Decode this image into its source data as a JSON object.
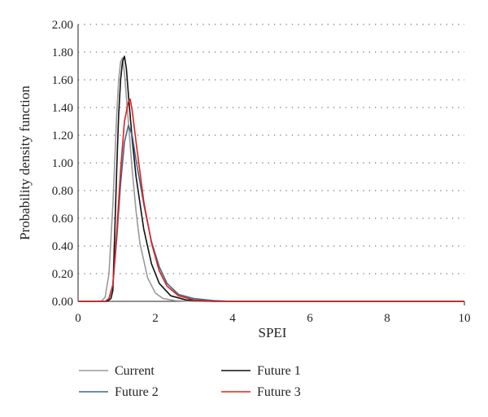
{
  "chart_data": {
    "type": "line",
    "xlabel": "SPEI",
    "ylabel": "Probability density function",
    "xlim": [
      0,
      10
    ],
    "ylim": [
      0,
      2
    ],
    "x_ticks": [
      "0",
      "2",
      "4",
      "6",
      "8",
      "10"
    ],
    "y_ticks": [
      "0.00",
      "0.20",
      "0.40",
      "0.60",
      "0.80",
      "1.00",
      "1.20",
      "1.40",
      "1.60",
      "1.80",
      "2.00"
    ],
    "grid": "horizontal dotted",
    "legend_position": "bottom",
    "series": [
      {
        "name": "Current",
        "color": "#9a9a9a",
        "points": [
          [
            0,
            0
          ],
          [
            0.6,
            0
          ],
          [
            0.7,
            0.03
          ],
          [
            0.8,
            0.2
          ],
          [
            0.9,
            0.7
          ],
          [
            1.0,
            1.35
          ],
          [
            1.05,
            1.6
          ],
          [
            1.1,
            1.73
          ],
          [
            1.15,
            1.76
          ],
          [
            1.2,
            1.65
          ],
          [
            1.3,
            1.3
          ],
          [
            1.4,
            0.95
          ],
          [
            1.5,
            0.65
          ],
          [
            1.6,
            0.42
          ],
          [
            1.8,
            0.17
          ],
          [
            2.0,
            0.06
          ],
          [
            2.2,
            0.02
          ],
          [
            2.5,
            0.005
          ],
          [
            3,
            0
          ],
          [
            10,
            0
          ]
        ]
      },
      {
        "name": "Future 1",
        "color": "#111111",
        "points": [
          [
            0,
            0
          ],
          [
            0.75,
            0
          ],
          [
            0.85,
            0.02
          ],
          [
            0.9,
            0.08
          ],
          [
            0.95,
            0.5
          ],
          [
            1.0,
            0.95
          ],
          [
            1.05,
            1.35
          ],
          [
            1.1,
            1.6
          ],
          [
            1.15,
            1.73
          ],
          [
            1.2,
            1.77
          ],
          [
            1.25,
            1.68
          ],
          [
            1.3,
            1.5
          ],
          [
            1.4,
            1.17
          ],
          [
            1.5,
            0.9
          ],
          [
            1.7,
            0.52
          ],
          [
            1.9,
            0.27
          ],
          [
            2.1,
            0.13
          ],
          [
            2.4,
            0.04
          ],
          [
            2.8,
            0.01
          ],
          [
            3.5,
            0
          ],
          [
            10,
            0
          ]
        ]
      },
      {
        "name": "Future 2",
        "color": "#3d6a8a",
        "points": [
          [
            0,
            0
          ],
          [
            0.7,
            0
          ],
          [
            0.8,
            0.02
          ],
          [
            0.9,
            0.12
          ],
          [
            1.0,
            0.45
          ],
          [
            1.1,
            0.85
          ],
          [
            1.2,
            1.15
          ],
          [
            1.3,
            1.27
          ],
          [
            1.4,
            1.2
          ],
          [
            1.5,
            1.02
          ],
          [
            1.7,
            0.7
          ],
          [
            1.9,
            0.43
          ],
          [
            2.1,
            0.25
          ],
          [
            2.3,
            0.13
          ],
          [
            2.6,
            0.05
          ],
          [
            3.0,
            0.02
          ],
          [
            3.5,
            0.005
          ],
          [
            4,
            0
          ],
          [
            10,
            0
          ]
        ]
      },
      {
        "name": "Future 3",
        "color": "#e02020",
        "points": [
          [
            0,
            0
          ],
          [
            0.7,
            0
          ],
          [
            0.8,
            0.02
          ],
          [
            0.9,
            0.12
          ],
          [
            1.0,
            0.5
          ],
          [
            1.1,
            0.95
          ],
          [
            1.2,
            1.3
          ],
          [
            1.3,
            1.44
          ],
          [
            1.35,
            1.46
          ],
          [
            1.4,
            1.38
          ],
          [
            1.5,
            1.15
          ],
          [
            1.7,
            0.72
          ],
          [
            1.9,
            0.42
          ],
          [
            2.1,
            0.22
          ],
          [
            2.3,
            0.11
          ],
          [
            2.6,
            0.04
          ],
          [
            3.0,
            0.01
          ],
          [
            3.5,
            0
          ],
          [
            10,
            0
          ]
        ]
      }
    ]
  },
  "legend": {
    "items": [
      {
        "name": "Current",
        "color": "#9a9a9a"
      },
      {
        "name": "Future 1",
        "color": "#111111"
      },
      {
        "name": "Future 2",
        "color": "#3d6a8a"
      },
      {
        "name": "Future 3",
        "color": "#e02020"
      }
    ]
  }
}
